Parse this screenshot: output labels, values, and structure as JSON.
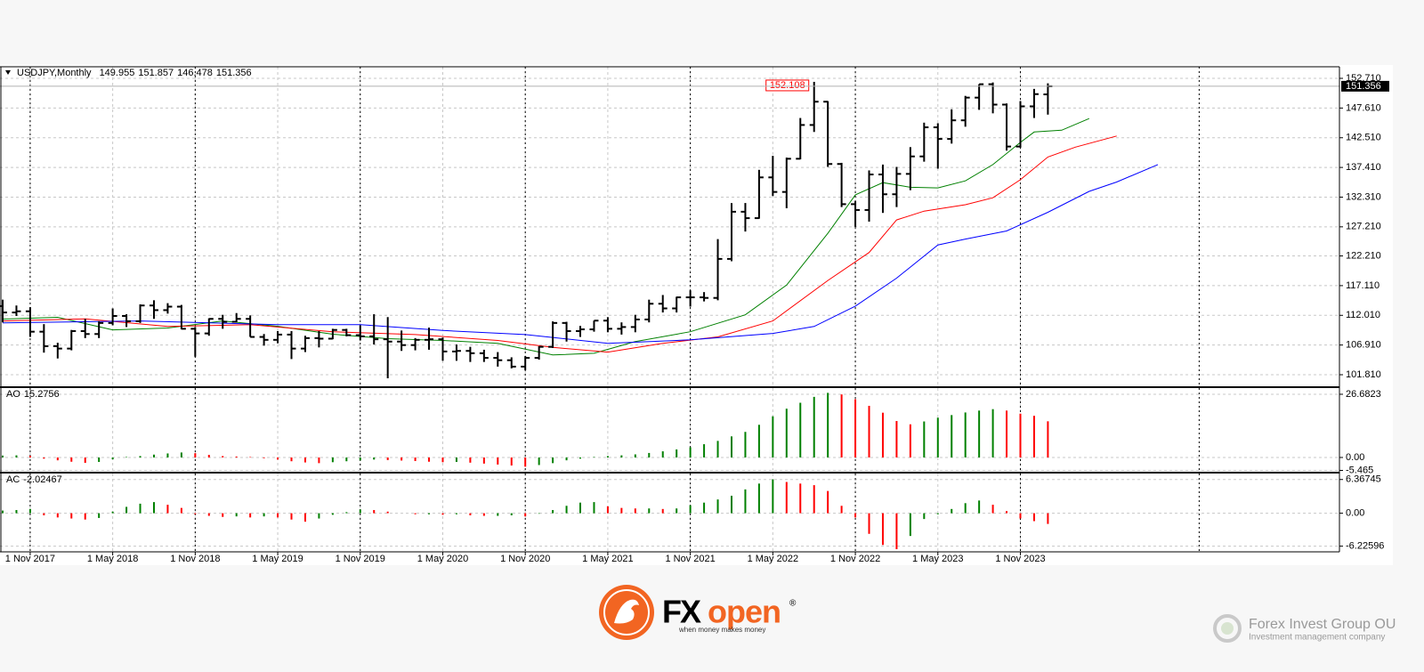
{
  "chart_data": [
    {
      "type": "ohlc",
      "title": "USDJPY,Monthly",
      "bar_color": "#000000",
      "open": [
        113.6,
        112.5,
        112.7,
        109.2,
        106.7,
        106.3,
        109.3,
        108.8,
        110.7,
        111.9,
        111.0,
        113.7,
        112.9,
        113.5,
        109.7,
        108.9,
        111.4,
        110.9,
        111.4,
        108.3,
        107.8,
        108.7,
        106.3,
        108.1,
        108.0,
        109.5,
        108.6,
        108.4,
        107.9,
        107.5,
        106.9,
        107.8,
        107.9,
        105.8,
        105.9,
        105.5,
        104.7,
        104.3,
        103.2,
        104.7,
        106.6,
        110.7,
        109.3,
        109.6,
        111.1,
        109.7,
        110.0,
        111.3,
        114.0,
        113.2,
        115.1,
        115.1,
        115.0,
        121.7,
        129.8,
        128.7,
        135.7,
        133.2,
        138.9,
        144.7,
        148.7,
        138.0,
        131.1,
        130.1,
        136.2,
        132.8,
        136.3,
        139.3,
        144.3,
        142.3,
        145.5,
        149.4,
        151.7,
        148.2,
        141.0,
        147.9,
        149.955
      ],
      "high": [
        114.7,
        113.7,
        113.4,
        110.5,
        107.3,
        109.5,
        111.4,
        111.0,
        113.2,
        112.2,
        113.9,
        114.6,
        114.1,
        113.8,
        110.0,
        111.5,
        112.1,
        112.4,
        112.0,
        108.8,
        109.3,
        109.3,
        108.5,
        109.3,
        109.7,
        109.7,
        110.3,
        112.2,
        111.7,
        109.4,
        108.1,
        109.9,
        108.2,
        107.0,
        106.6,
        106.1,
        105.7,
        104.8,
        105.0,
        106.7,
        110.97,
        110.9,
        110.2,
        111.1,
        111.7,
        110.8,
        112.1,
        114.7,
        115.5,
        115.2,
        116.3,
        116.0,
        125.1,
        131.3,
        131.3,
        137.0,
        139.4,
        139.1,
        145.9,
        152.108,
        148.8,
        138.2,
        131.6,
        136.9,
        137.9,
        137.5,
        140.9,
        145.1,
        145.0,
        147.4,
        149.7,
        151.7,
        152.0,
        148.4,
        148.8,
        150.9,
        151.857
      ],
      "low": [
        110.8,
        111.9,
        108.3,
        105.6,
        104.6,
        106.0,
        108.1,
        108.1,
        110.3,
        110.0,
        110.7,
        111.4,
        112.3,
        109.6,
        104.9,
        108.5,
        109.7,
        110.8,
        108.3,
        106.8,
        107.2,
        104.5,
        105.7,
        106.5,
        107.9,
        108.4,
        107.7,
        107.0,
        101.2,
        105.9,
        106.0,
        106.1,
        104.2,
        104.2,
        104.0,
        104.0,
        103.2,
        102.9,
        102.6,
        104.4,
        106.4,
        107.5,
        108.3,
        109.2,
        109.1,
        108.7,
        109.1,
        110.8,
        112.5,
        112.5,
        113.5,
        114.4,
        114.6,
        121.3,
        126.4,
        128.6,
        132.5,
        130.4,
        138.8,
        143.5,
        137.5,
        130.6,
        127.2,
        128.1,
        129.6,
        130.6,
        133.5,
        138.4,
        137.2,
        141.5,
        144.4,
        147.3,
        146.7,
        140.3,
        140.8,
        145.9,
        146.478
      ],
      "close": [
        112.5,
        112.7,
        109.2,
        106.7,
        106.3,
        109.3,
        108.8,
        110.7,
        111.9,
        111.0,
        113.7,
        112.9,
        113.5,
        109.7,
        108.9,
        111.4,
        110.9,
        111.4,
        108.3,
        107.8,
        108.7,
        106.3,
        108.1,
        108.0,
        109.5,
        108.6,
        108.4,
        107.9,
        107.5,
        106.9,
        107.8,
        107.9,
        105.8,
        105.9,
        105.5,
        104.7,
        104.3,
        103.2,
        104.7,
        106.6,
        110.7,
        109.3,
        109.6,
        111.1,
        109.7,
        110.0,
        111.3,
        114.0,
        113.2,
        115.1,
        115.1,
        115.0,
        121.7,
        129.8,
        128.7,
        135.7,
        133.2,
        138.9,
        144.7,
        148.7,
        138.0,
        131.1,
        130.1,
        136.2,
        132.8,
        136.3,
        139.3,
        144.3,
        142.3,
        145.5,
        149.4,
        151.7,
        148.2,
        141.0,
        147.9,
        150.0,
        151.356
      ],
      "lines": [
        {
          "color": "#008000",
          "x": [
            0,
            4,
            8,
            12,
            16,
            20,
            24,
            28,
            32,
            36,
            40,
            43,
            46,
            50,
            54,
            57,
            60,
            62,
            64,
            66,
            68,
            70,
            72,
            74,
            75,
            77,
            79
          ],
          "values": [
            111.36,
            111.67,
            109.52,
            109.83,
            111.05,
            110.13,
            108.76,
            108.0,
            107.7,
            107.2,
            105.2,
            105.5,
            107.5,
            109.2,
            112.1,
            117.2,
            126.1,
            132.7,
            134.8,
            134.0,
            133.9,
            135.1,
            137.9,
            141.7,
            143.5,
            143.8,
            145.8
          ]
        },
        {
          "color": "#ff0000",
          "x": [
            0,
            6,
            12,
            18,
            24,
            30,
            36,
            40,
            44,
            48,
            52,
            56,
            60,
            63,
            65,
            67,
            70,
            72,
            74,
            76,
            78,
            81
          ],
          "values": [
            111.05,
            111.4,
            110.1,
            110.4,
            109.2,
            108.7,
            107.7,
            106.5,
            105.7,
            107.2,
            108.3,
            111.05,
            118.0,
            122.8,
            128.4,
            129.9,
            131.0,
            132.2,
            135.3,
            139.2,
            140.9,
            142.8
          ]
        },
        {
          "color": "#0000ff",
          "x": [
            0,
            10,
            20,
            26,
            32,
            38,
            44,
            50,
            56,
            59,
            62,
            65,
            68,
            70,
            73,
            76,
            79,
            81,
            84
          ],
          "values": [
            110.7,
            111.05,
            110.4,
            110.4,
            109.4,
            108.7,
            107.2,
            107.8,
            108.9,
            110.1,
            113.6,
            118.4,
            124.1,
            125.1,
            126.5,
            129.7,
            133.3,
            134.9,
            137.9
          ]
        }
      ],
      "ylim": [
        99.67,
        154.7
      ],
      "yticks": [
        {
          "value": 152.71,
          "label": "152.710"
        },
        {
          "value": 147.61,
          "label": "147.610"
        },
        {
          "value": 142.51,
          "label": "142.510"
        },
        {
          "value": 137.41,
          "label": "137.410"
        },
        {
          "value": 132.31,
          "label": "132.310"
        },
        {
          "value": 127.21,
          "label": "127.210"
        },
        {
          "value": 122.21,
          "label": "122.210"
        },
        {
          "value": 117.11,
          "label": "117.110"
        },
        {
          "value": 112.01,
          "label": "112.010"
        },
        {
          "value": 106.91,
          "label": "106.910"
        },
        {
          "value": 101.81,
          "label": "101.810"
        }
      ],
      "xlim": [
        0,
        97.2
      ],
      "xticks": [
        {
          "value": 2,
          "label": "1 Nov 2017"
        },
        {
          "value": 8,
          "label": "1 May 2018"
        },
        {
          "value": 14,
          "label": "1 Nov 2018"
        },
        {
          "value": 20,
          "label": "1 May 2019"
        },
        {
          "value": 26,
          "label": "1 Nov 2019"
        },
        {
          "value": 32,
          "label": "1 May 2020"
        },
        {
          "value": 38,
          "label": "1 Nov 2020"
        },
        {
          "value": 44,
          "label": "1 May 2021"
        },
        {
          "value": 50,
          "label": "1 Nov 2021"
        },
        {
          "value": 56,
          "label": "1 May 2022"
        },
        {
          "value": 62,
          "label": "1 Nov 2022"
        },
        {
          "value": 68,
          "label": "1 May 2023"
        },
        {
          "value": 74,
          "label": "1 Nov 2023"
        }
      ],
      "period_separators": [
        2,
        14,
        26,
        38,
        50,
        62,
        74,
        87
      ],
      "grid": true
    },
    {
      "type": "histogram_osc",
      "title": "AO",
      "up_color": "#008000",
      "down_color": "#ff0000",
      "values": [
        0.8,
        0.9,
        0.7,
        -0.5,
        -1.2,
        -1.8,
        -2.3,
        -1.9,
        -0.8,
        0.2,
        0.6,
        1.2,
        1.7,
        2.1,
        1.8,
        1.1,
        0.6,
        0.4,
        0.2,
        -0.3,
        -0.9,
        -1.6,
        -2.1,
        -2.4,
        -2.0,
        -1.6,
        -1.2,
        -0.9,
        -1.1,
        -1.3,
        -1.5,
        -1.8,
        -2.0,
        -1.9,
        -2.2,
        -2.6,
        -3.0,
        -3.4,
        -3.9,
        -3.2,
        -2.4,
        -1.2,
        -0.5,
        0.2,
        0.6,
        0.9,
        1.3,
        1.9,
        2.6,
        3.4,
        4.3,
        5.6,
        7.0,
        8.9,
        10.8,
        13.8,
        17.4,
        20.6,
        23.1,
        25.6,
        27.3,
        26.6,
        24.6,
        21.8,
        18.9,
        15.4,
        14.0,
        15.2,
        16.8,
        17.9,
        19.0,
        19.8,
        20.4,
        19.8,
        18.5,
        17.6,
        15.2756
      ],
      "ylim": [
        -6.4,
        29.3
      ],
      "yticks": [
        26.6823,
        {
          "value": 0,
          "label": "0.00"
        },
        -5.465
      ]
    },
    {
      "type": "histogram_osc",
      "title": "AC",
      "up_color": "#008000",
      "down_color": "#ff0000",
      "values": [
        0.5,
        0.6,
        0.8,
        -0.4,
        -0.8,
        -1.0,
        -1.2,
        -0.9,
        0.3,
        1.2,
        1.8,
        2.1,
        1.6,
        1.0,
        -0.2,
        -0.5,
        -0.7,
        -0.6,
        -0.8,
        -0.6,
        -0.8,
        -1.2,
        -1.6,
        -1.0,
        -0.3,
        0.2,
        0.7,
        0.6,
        0.3,
        0.0,
        -0.2,
        -0.2,
        -0.3,
        -0.2,
        -0.4,
        -0.5,
        -0.5,
        -0.4,
        -0.6,
        -0.1,
        0.6,
        1.4,
        2.0,
        2.1,
        1.3,
        1.0,
        0.9,
        0.9,
        0.8,
        0.9,
        1.5,
        2.0,
        2.6,
        3.3,
        4.5,
        5.6,
        6.4,
        5.9,
        5.6,
        5.3,
        4.2,
        1.4,
        -0.8,
        -3.9,
        -6.0,
        -6.8,
        -4.3,
        -1.1,
        -0.2,
        0.8,
        1.9,
        2.4,
        1.6,
        0.4,
        -1.0,
        -1.5,
        -2.02467
      ],
      "ylim": [
        -7.3,
        7.5
      ],
      "yticks": [
        6.36745,
        {
          "value": 0,
          "label": "0.00"
        },
        -6.22596
      ]
    }
  ],
  "branding": {
    "brand_left": "FX",
    "brand_right": "open",
    "registered": "®",
    "tagline": "when money makes money",
    "company": "Forex Invest Group OU",
    "company_sub": "Investment management company"
  }
}
